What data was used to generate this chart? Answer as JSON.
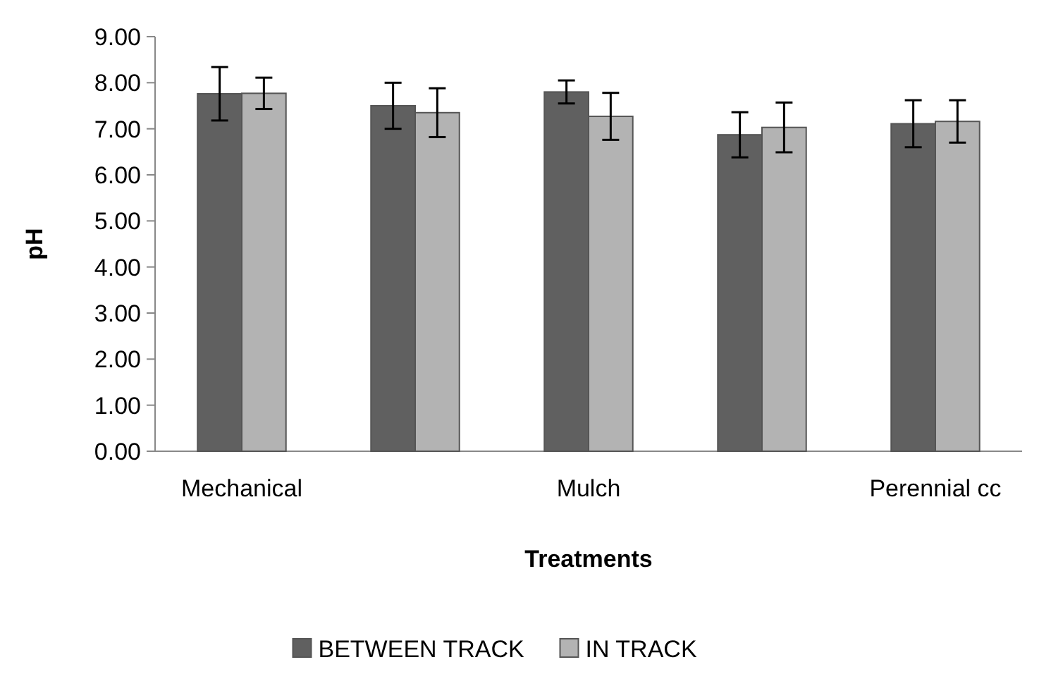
{
  "chart_data": {
    "type": "bar",
    "xlabel": "Treatments",
    "ylabel": "pH",
    "categories": [
      "Mechanical",
      null,
      "Mulch",
      null,
      "Perennial cc"
    ],
    "ylim": [
      0,
      9
    ],
    "yticks": [
      {
        "value": 0,
        "label": "0.00"
      },
      {
        "value": 1,
        "label": "1.00"
      },
      {
        "value": 2,
        "label": "2.00"
      },
      {
        "value": 3,
        "label": "3.00"
      },
      {
        "value": 4,
        "label": "4.00"
      },
      {
        "value": 5,
        "label": "5.00"
      },
      {
        "value": 6,
        "label": "6.00"
      },
      {
        "value": 7,
        "label": "7.00"
      },
      {
        "value": 8,
        "label": "8.00"
      },
      {
        "value": 9,
        "label": "9.00"
      }
    ],
    "legend": "bottom",
    "series": [
      {
        "name": "BETWEEN TRACK",
        "color": "#606060",
        "values": [
          7.76,
          7.5,
          7.8,
          6.87,
          7.11
        ],
        "errors": [
          0.58,
          0.5,
          0.25,
          0.49,
          0.51
        ]
      },
      {
        "name": "IN TRACK",
        "color": "#b3b3b3",
        "values": [
          7.77,
          7.35,
          7.27,
          7.03,
          7.16
        ],
        "errors": [
          0.34,
          0.53,
          0.51,
          0.54,
          0.46
        ]
      }
    ]
  }
}
